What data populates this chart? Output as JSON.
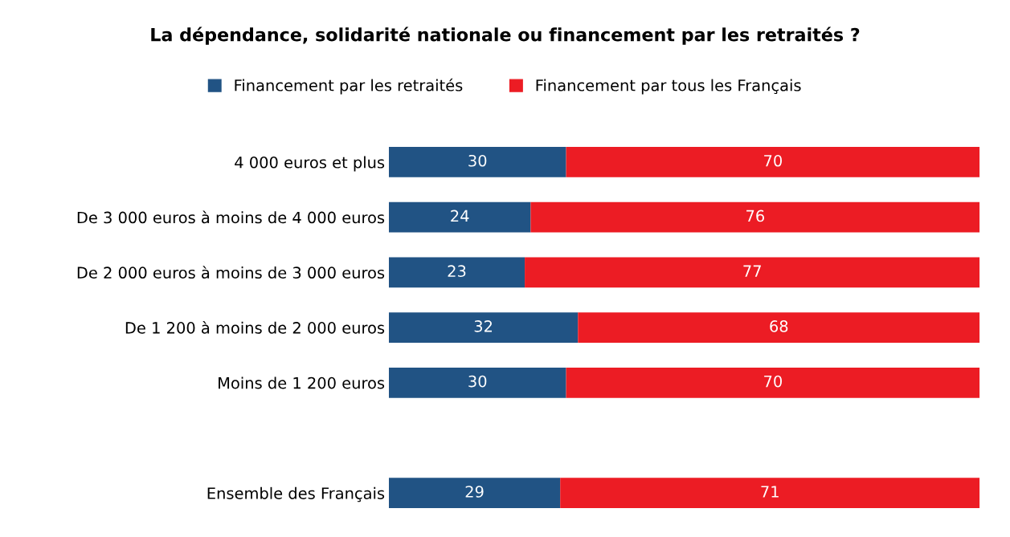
{
  "chart_data": {
    "type": "bar",
    "orientation": "horizontal",
    "stacked": true,
    "title": "La dépendance, solidarité nationale ou financement par les retraités ?",
    "categories": [
      "4 000 euros et plus",
      "De 3 000 euros à moins de 4 000 euros",
      "De 2 000 euros à moins de 3 000 euros",
      "De 1 200 à moins de 2 000 euros",
      "Moins de 1 200 euros",
      null,
      "Ensemble des Français"
    ],
    "series": [
      {
        "name": "Financement par les retraités",
        "color": "#215384",
        "values": [
          30,
          24,
          23,
          32,
          30,
          null,
          29
        ]
      },
      {
        "name": "Financement par tous les Français",
        "color": "#ec1c24",
        "values": [
          70,
          76,
          77,
          68,
          70,
          null,
          71
        ]
      }
    ],
    "data_labels": true,
    "legend": "top",
    "grid": false
  }
}
